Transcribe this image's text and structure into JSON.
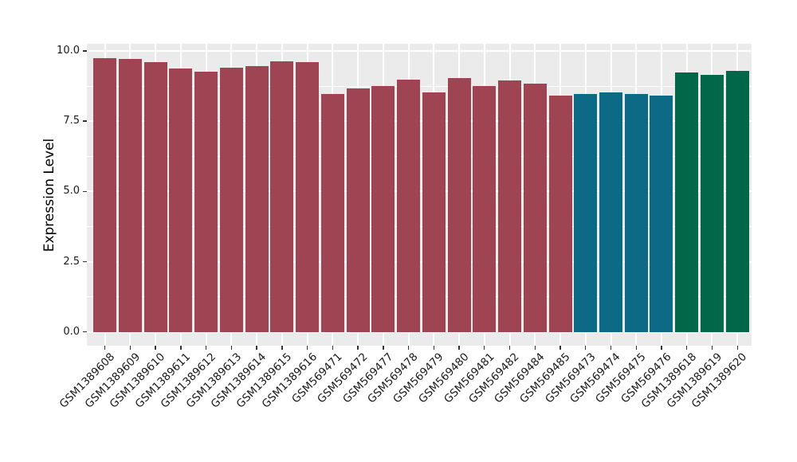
{
  "chart_data": {
    "type": "bar",
    "title": "",
    "xlabel": "",
    "ylabel": "Expression Level",
    "ylim": [
      0,
      10
    ],
    "ytick_values": [
      0.0,
      2.5,
      5.0,
      7.5,
      10.0
    ],
    "ytick_labels": [
      "0.0",
      "2.5",
      "5.0",
      "7.5",
      "10.0"
    ],
    "y_minor_tick_values": [
      1.25,
      3.75,
      6.25,
      8.75
    ],
    "grid": "on",
    "legend_position": "none",
    "panel_background_color": "#EBEBEB",
    "gridline_color": "#FFFFFF",
    "palette": {
      "group1_maroon": "#9E4452",
      "group2_teal": "#0D6A87",
      "group3_green": "#006849"
    },
    "categories": [
      "GSM1389608",
      "GSM1389609",
      "GSM1389610",
      "GSM1389611",
      "GSM1389612",
      "GSM1389613",
      "GSM1389614",
      "GSM1389615",
      "GSM1389616",
      "GSM569471",
      "GSM569472",
      "GSM569477",
      "GSM569478",
      "GSM569479",
      "GSM569480",
      "GSM569481",
      "GSM569482",
      "GSM569484",
      "GSM569485",
      "GSM569473",
      "GSM569474",
      "GSM569475",
      "GSM569476",
      "GSM1389618",
      "GSM1389619",
      "GSM1389620"
    ],
    "values": [
      9.74,
      9.71,
      9.6,
      9.37,
      9.25,
      9.4,
      9.47,
      9.62,
      9.6,
      8.47,
      8.68,
      8.75,
      8.97,
      8.53,
      9.04,
      8.76,
      8.96,
      8.83,
      8.4,
      8.48,
      8.52,
      8.47,
      8.4,
      9.24,
      9.15,
      9.3
    ],
    "bar_colors": [
      "#9E4452",
      "#9E4452",
      "#9E4452",
      "#9E4452",
      "#9E4452",
      "#9E4452",
      "#9E4452",
      "#9E4452",
      "#9E4452",
      "#9E4452",
      "#9E4452",
      "#9E4452",
      "#9E4452",
      "#9E4452",
      "#9E4452",
      "#9E4452",
      "#9E4452",
      "#9E4452",
      "#9E4452",
      "#0D6A87",
      "#0D6A87",
      "#0D6A87",
      "#0D6A87",
      "#006849",
      "#006849",
      "#006849"
    ]
  }
}
